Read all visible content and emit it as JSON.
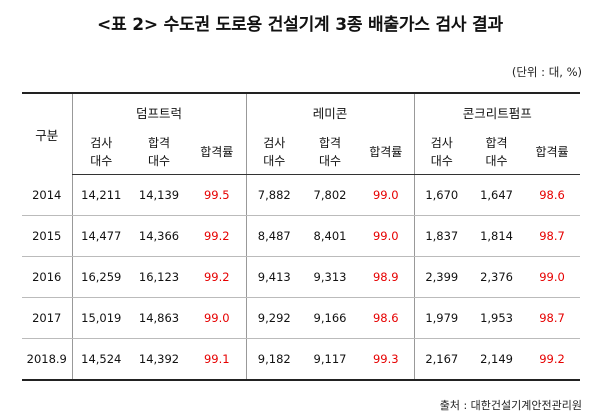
{
  "title": "<표 2> 수도권 도로용 건설기계 3종 배출가스 검사 결과",
  "unit": "(단위 : 대, %)",
  "table": {
    "row_header": "구분",
    "groups": [
      "덤프트럭",
      "레미콘",
      "콘크리트펌프"
    ],
    "sub_headers": [
      "검사\n대수",
      "합격\n대수",
      "합격률"
    ],
    "rows": [
      {
        "year": "2014",
        "values": [
          "14,211",
          "14,139",
          "99.5",
          "7,882",
          "7,802",
          "99.0",
          "1,670",
          "1,647",
          "98.6"
        ]
      },
      {
        "year": "2015",
        "values": [
          "14,477",
          "14,366",
          "99.2",
          "8,487",
          "8,401",
          "99.0",
          "1,837",
          "1,814",
          "98.7"
        ]
      },
      {
        "year": "2016",
        "values": [
          "16,259",
          "16,123",
          "99.2",
          "9,413",
          "9,313",
          "98.9",
          "2,399",
          "2,376",
          "99.0"
        ]
      },
      {
        "year": "2017",
        "values": [
          "15,019",
          "14,863",
          "99.0",
          "9,292",
          "9,166",
          "98.6",
          "1,979",
          "1,953",
          "98.7"
        ]
      },
      {
        "year": "2018.9",
        "values": [
          "14,524",
          "14,392",
          "99.1",
          "9,182",
          "9,117",
          "99.3",
          "2,167",
          "2,149",
          "99.2"
        ]
      }
    ]
  },
  "source": "출처 : 대한건설기계안전관리원",
  "colors": {
    "pass_rate": "#e60000",
    "text": "#111111"
  }
}
